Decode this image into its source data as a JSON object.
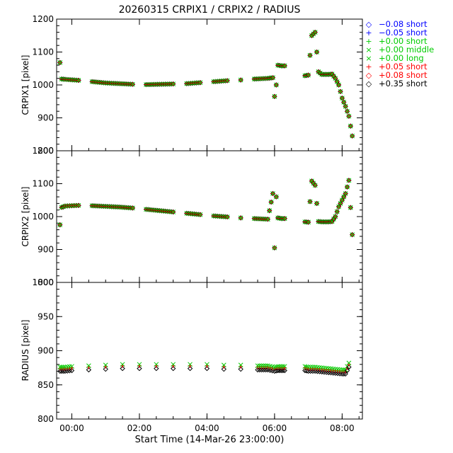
{
  "chart_data": {
    "type": "scatter",
    "title": "20260315 CRPIX1 / CRPIX2 / RADIUS",
    "xlabel": "Start Time (14-Mar-26 23:00:00)",
    "x_unit": "hours since 14-Mar-26 23:00:00",
    "xlim": [
      0.55,
      9.6
    ],
    "x_ticks": [
      {
        "label": "00:00",
        "value": 1
      },
      {
        "label": "02:00",
        "value": 3
      },
      {
        "label": "04:00",
        "value": 5
      },
      {
        "label": "06:00",
        "value": 7
      },
      {
        "label": "08:00",
        "value": 9
      }
    ],
    "panels": [
      {
        "ylabel": "CRPIX1 [pixel]",
        "ylim": [
          800,
          1200
        ],
        "yticks": [
          "800",
          "900",
          "1000",
          "1100",
          "1200"
        ],
        "ytick_values": [
          800,
          900,
          1000,
          1100,
          1200
        ]
      },
      {
        "ylabel": "CRPIX2 [pixel]",
        "ylim": [
          800,
          1200
        ],
        "yticks": [
          "800",
          "900",
          "1000",
          "1100",
          "1200"
        ],
        "ytick_values": [
          800,
          900,
          1000,
          1100,
          1200
        ]
      },
      {
        "ylabel": "RADIUS [pixel]",
        "ylim": [
          800,
          1000
        ],
        "yticks": [
          "800",
          "850",
          "900",
          "950",
          "1000"
        ],
        "ytick_values": [
          800,
          850,
          900,
          950,
          1000
        ]
      }
    ],
    "legend": {
      "placement": "right",
      "entries": [
        {
          "symbol": "◇",
          "marker": "diamond",
          "label": "−0.08 short",
          "color": "#0000ff"
        },
        {
          "symbol": "+",
          "marker": "plus",
          "label": "−0.05 short",
          "color": "#0000ff"
        },
        {
          "symbol": "+",
          "marker": "plus",
          "label": "+0.00 short",
          "color": "#00cc00"
        },
        {
          "symbol": "×",
          "marker": "cross",
          "label": "+0.00 middle",
          "color": "#00cc00"
        },
        {
          "symbol": "×",
          "marker": "cross",
          "label": "+0.00 long",
          "color": "#00cc00"
        },
        {
          "symbol": "+",
          "marker": "plus",
          "label": "+0.05 short",
          "color": "#ff0000"
        },
        {
          "symbol": "◇",
          "marker": "diamond",
          "label": "+0.08 short",
          "color": "#ff0000"
        },
        {
          "symbol": "◇",
          "marker": "diamond",
          "label": "+0.35 short",
          "color": "#000000"
        }
      ]
    },
    "series": [
      {
        "name": "CRPIX1",
        "color": "#00cc00",
        "x": [
          0.65,
          0.7,
          0.8,
          1.2,
          1.6,
          2.0,
          2.4,
          2.8,
          3.2,
          3.6,
          4.0,
          4.4,
          4.8,
          5.2,
          5.6,
          6.0,
          6.4,
          6.8,
          6.95,
          7.0,
          7.05,
          7.1,
          7.2,
          7.3,
          7.9,
          8.0,
          8.1,
          8.2,
          8.3,
          8.4,
          8.5,
          8.6,
          8.7,
          8.8,
          8.9,
          9.0,
          9.1,
          9.15,
          9.2,
          9.3
        ],
        "y": [
          1068,
          1018,
          1017,
          1014,
          1010,
          1006,
          1004,
          1002,
          1001,
          1002,
          1003,
          1004,
          1007,
          1010,
          1013,
          1015,
          1018,
          1020,
          1022,
          965,
          1000,
          1060,
          1058,
          1058,
          1028,
          1030,
          1150,
          1160,
          1040,
          1032,
          1032,
          1032,
          1033,
          1020,
          1000,
          960,
          935,
          920,
          905,
          845
        ]
      },
      {
        "name": "CRPIX2",
        "color": "#00cc00",
        "x": [
          0.65,
          0.7,
          0.8,
          1.0,
          1.2,
          1.6,
          2.0,
          2.4,
          2.8,
          3.2,
          3.6,
          4.0,
          4.4,
          4.8,
          5.2,
          5.6,
          6.0,
          6.4,
          6.8,
          6.95,
          7.0,
          7.05,
          7.1,
          7.2,
          7.3,
          7.9,
          8.0,
          8.1,
          8.2,
          8.3,
          8.4,
          8.5,
          8.6,
          8.7,
          8.8,
          8.9,
          9.0,
          9.1,
          9.2,
          9.3
        ],
        "y": [
          975,
          1028,
          1032,
          1033,
          1034,
          1033,
          1031,
          1029,
          1026,
          1022,
          1018,
          1014,
          1010,
          1006,
          1002,
          999,
          996,
          994,
          992,
          1070,
          905,
          1060,
          996,
          994,
          994,
          984,
          983,
          1108,
          1095,
          985,
          984,
          984,
          984,
          985,
          1000,
          1030,
          1050,
          1070,
          1110,
          945
        ]
      },
      {
        "name": "RADIUS",
        "color": "#00cc00",
        "x": [
          0.65,
          0.8,
          1.0,
          1.5,
          2.0,
          2.5,
          3.0,
          3.5,
          4.0,
          4.5,
          5.0,
          5.5,
          6.0,
          6.5,
          6.8,
          7.0,
          7.1,
          7.2,
          7.3,
          7.9,
          8.0,
          8.2,
          8.4,
          8.6,
          8.8,
          9.0,
          9.1,
          9.2
        ],
        "y": [
          876,
          876,
          877,
          878,
          879,
          880,
          880,
          880,
          880,
          880,
          880,
          879,
          879,
          878,
          878,
          876,
          877,
          877,
          877,
          877,
          876,
          876,
          875,
          874,
          873,
          872,
          872,
          882
        ]
      }
    ]
  }
}
